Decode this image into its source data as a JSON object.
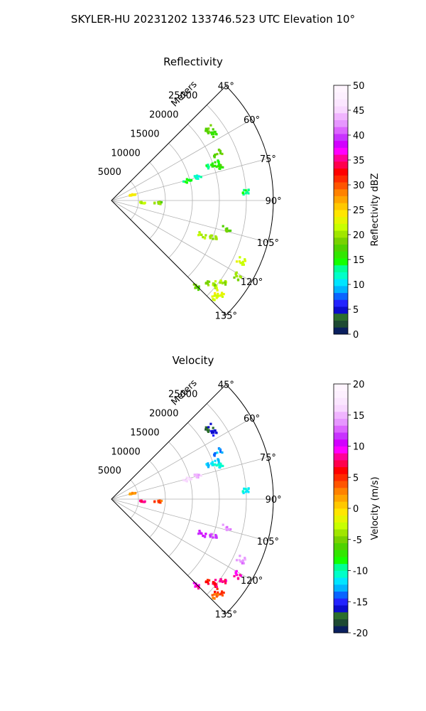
{
  "figure": {
    "suptitle": "SKYLER-HU  20231202  133746.523 UTC Elevation 10°"
  },
  "chart_data": [
    {
      "type": "polar-scatter",
      "title": "Reflectivity",
      "radial_axis_label": "Meters",
      "radial_ticks": [
        "5000",
        "10000",
        "15000",
        "20000",
        "25000"
      ],
      "radial_tick_values": [
        5000,
        10000,
        15000,
        20000,
        25000
      ],
      "rlim": [
        0,
        30000
      ],
      "angular_ticks": [
        "45°",
        "60°",
        "75°",
        "90°",
        "105°",
        "120°",
        "135°"
      ],
      "angular_tick_values": [
        45,
        60,
        75,
        90,
        105,
        120,
        135
      ],
      "theta_range": [
        45,
        135
      ],
      "grid": true,
      "colorbar": {
        "label": "Reflectivity dBZ",
        "ticks": [
          "0",
          "5",
          "10",
          "15",
          "20",
          "25",
          "30",
          "35",
          "40",
          "45",
          "50"
        ],
        "range": [
          0,
          50
        ],
        "colors": [
          "#0a1f5e",
          "#1e4a33",
          "#2d6e2d",
          "#0c0ccc",
          "#2323ff",
          "#0a64ff",
          "#00b4ff",
          "#00e5ff",
          "#00ffc8",
          "#00ff96",
          "#14ff00",
          "#32e600",
          "#50d200",
          "#78d200",
          "#a0e600",
          "#c8ff00",
          "#e6f500",
          "#ffe600",
          "#ffc800",
          "#ffa500",
          "#ff8200",
          "#ff5500",
          "#ff2a00",
          "#ff0000",
          "#ff004d",
          "#ff0096",
          "#ff00ff",
          "#d200ff",
          "#c832ff",
          "#dc64ff",
          "#e696ff",
          "#f0b4ff",
          "#f8d7ff",
          "#fbe6ff",
          "#fdf0ff",
          "#fff5ff"
        ]
      },
      "echoes": [
        {
          "az": 75.5,
          "r": 14500,
          "value": 14
        },
        {
          "az": 75,
          "r": 16500,
          "value": 12
        },
        {
          "az": 71,
          "r": 19500,
          "value": 14
        },
        {
          "az": 70.5,
          "r": 20500,
          "value": 15
        },
        {
          "az": 73,
          "r": 21000,
          "value": 16
        },
        {
          "az": 86.5,
          "r": 25000,
          "value": 14
        },
        {
          "az": 54,
          "r": 22500,
          "value": 18
        },
        {
          "az": 57,
          "r": 23000,
          "value": 16
        },
        {
          "az": 66,
          "r": 21500,
          "value": 18
        },
        {
          "az": 93,
          "r": 8500,
          "value": 19
        },
        {
          "az": 94,
          "r": 5500,
          "value": 21
        },
        {
          "az": 111,
          "r": 18000,
          "value": 21
        },
        {
          "az": 110,
          "r": 20000,
          "value": 20
        },
        {
          "az": 104,
          "r": 22000,
          "value": 18
        },
        {
          "az": 115,
          "r": 26500,
          "value": 22
        },
        {
          "az": 126,
          "r": 25500,
          "value": 20
        },
        {
          "az": 129,
          "r": 25000,
          "value": 21
        },
        {
          "az": 130,
          "r": 24000,
          "value": 19
        },
        {
          "az": 131,
          "r": 26500,
          "value": 23
        },
        {
          "az": 133,
          "r": 26000,
          "value": 22
        },
        {
          "az": 121,
          "r": 27500,
          "value": 20
        },
        {
          "az": 135,
          "r": 22500,
          "value": 18
        },
        {
          "az": 75,
          "r": 4000,
          "value": 24
        }
      ]
    },
    {
      "type": "polar-scatter",
      "title": "Velocity",
      "radial_axis_label": "Meters",
      "radial_ticks": [
        "5000",
        "10000",
        "15000",
        "20000",
        "25000"
      ],
      "radial_tick_values": [
        5000,
        10000,
        15000,
        20000,
        25000
      ],
      "rlim": [
        0,
        30000
      ],
      "angular_ticks": [
        "45°",
        "60°",
        "75°",
        "90°",
        "105°",
        "120°",
        "135°"
      ],
      "angular_tick_values": [
        45,
        60,
        75,
        90,
        105,
        120,
        135
      ],
      "theta_range": [
        45,
        135
      ],
      "grid": true,
      "colorbar": {
        "label": "Velocity (m/s)",
        "ticks": [
          "-20",
          "-15",
          "-10",
          "-5",
          "0",
          "5",
          "10",
          "15",
          "20"
        ],
        "range": [
          -20,
          20
        ],
        "colors": [
          "#0a1f5e",
          "#1e4a33",
          "#2d6e2d",
          "#0c0ccc",
          "#2323ff",
          "#0a64ff",
          "#00b4ff",
          "#00e5ff",
          "#00ffc8",
          "#00ff96",
          "#14ff00",
          "#32e600",
          "#50d200",
          "#78d200",
          "#a0e600",
          "#c8ff00",
          "#e6f500",
          "#ffe600",
          "#ffc800",
          "#ffa500",
          "#ff8200",
          "#ff5500",
          "#ff2a00",
          "#ff0000",
          "#ff004d",
          "#ff0096",
          "#ff00ff",
          "#d200ff",
          "#c832ff",
          "#dc64ff",
          "#e696ff",
          "#f0b4ff",
          "#f8d7ff",
          "#fbe6ff",
          "#fdf0ff",
          "#fff5ff"
        ]
      },
      "echoes": [
        {
          "az": 75.5,
          "r": 14500,
          "value": 16
        },
        {
          "az": 75,
          "r": 16500,
          "value": 15
        },
        {
          "az": 71,
          "r": 19500,
          "value": -12
        },
        {
          "az": 70.5,
          "r": 20500,
          "value": -12
        },
        {
          "az": 73,
          "r": 21000,
          "value": -11
        },
        {
          "az": 86.5,
          "r": 25000,
          "value": -11
        },
        {
          "az": 54,
          "r": 22500,
          "value": -17
        },
        {
          "az": 57,
          "r": 23000,
          "value": -16
        },
        {
          "az": 66,
          "r": 21500,
          "value": -13
        },
        {
          "az": 93,
          "r": 8500,
          "value": 4
        },
        {
          "az": 94,
          "r": 5500,
          "value": 8
        },
        {
          "az": 111,
          "r": 18000,
          "value": 11
        },
        {
          "az": 110,
          "r": 20000,
          "value": 12
        },
        {
          "az": 104,
          "r": 22000,
          "value": 14
        },
        {
          "az": 115,
          "r": 26500,
          "value": 14
        },
        {
          "az": 126,
          "r": 25500,
          "value": 8
        },
        {
          "az": 129,
          "r": 25000,
          "value": 7
        },
        {
          "az": 130,
          "r": 24000,
          "value": 6
        },
        {
          "az": 131,
          "r": 26500,
          "value": 5
        },
        {
          "az": 133,
          "r": 26000,
          "value": 3
        },
        {
          "az": 121,
          "r": 27500,
          "value": 9
        },
        {
          "az": 135,
          "r": 22500,
          "value": 9
        },
        {
          "az": 75,
          "r": 4000,
          "value": 2
        }
      ]
    }
  ]
}
